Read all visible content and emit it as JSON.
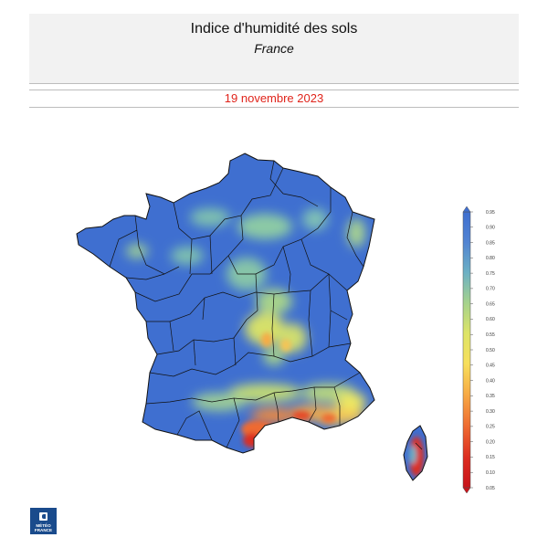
{
  "header": {
    "title": "Indice d'humidité des sols",
    "subtitle": "France"
  },
  "date": "19 novembre 2023",
  "legend": {
    "ticks": [
      "0.95",
      "0.90",
      "0.85",
      "0.80",
      "0.75",
      "0.70",
      "0.65",
      "0.60",
      "0.55",
      "0.50",
      "0.45",
      "0.40",
      "0.35",
      "0.30",
      "0.25",
      "0.20",
      "0.15",
      "0.10",
      "0.05"
    ],
    "colors": [
      "#3f6fd0",
      "#4a78d4",
      "#5284d2",
      "#5f9ad0",
      "#6cb0c4",
      "#86c4a9",
      "#a5d28c",
      "#c4dc73",
      "#dde467",
      "#eee862",
      "#f7df5c",
      "#f9c751",
      "#f7ab45",
      "#f38a3a",
      "#ee6a31",
      "#e74a28",
      "#dc2d20",
      "#cf1a18"
    ]
  },
  "logo": {
    "text": "MÉTÉO\nFRANCE"
  }
}
